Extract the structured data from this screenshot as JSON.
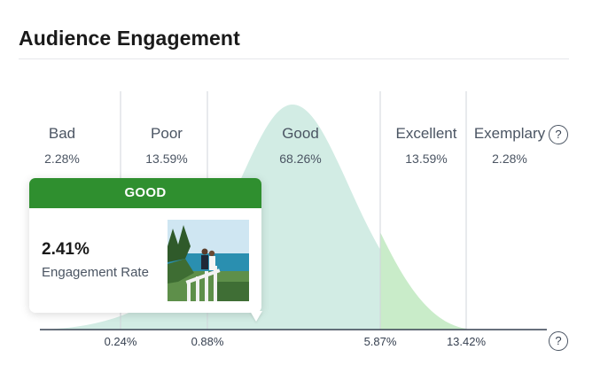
{
  "header": {
    "title": "Audience Engagement"
  },
  "categories": [
    {
      "name": "Bad",
      "share": "2.28%"
    },
    {
      "name": "Poor",
      "share": "13.59%"
    },
    {
      "name": "Good",
      "share": "68.26%"
    },
    {
      "name": "Excellent",
      "share": "13.59%"
    },
    {
      "name": "Exemplary",
      "share": "2.28%"
    }
  ],
  "thresholds": [
    "0.24%",
    "0.88%",
    "5.87%",
    "13.42%"
  ],
  "help_glyph": "?",
  "tooltip": {
    "category": "GOOD",
    "value": "2.41%",
    "metric_label": "Engagement Rate",
    "header_color": "#2f8f2f"
  },
  "colors": {
    "curve_main": "#d2ece4",
    "curve_excellent": "#c9ecc9",
    "divider": "#d1d5db",
    "axis": "#374151"
  },
  "icons": {
    "help": "question-circle-icon",
    "thumbnail": "couple-beach-photo"
  }
}
